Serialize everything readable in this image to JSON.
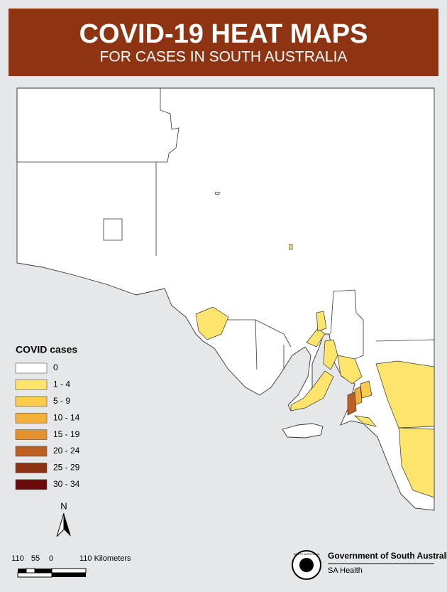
{
  "header": {
    "title": "COVID-19 HEAT MAPS",
    "subtitle": "FOR CASES IN SOUTH AUSTRALIA"
  },
  "legend": {
    "title": "COVID cases",
    "items": [
      {
        "label": "0",
        "color": "#ffffff"
      },
      {
        "label": "1 - 4",
        "color": "#fde46c"
      },
      {
        "label": "5 - 9",
        "color": "#fbcb4c"
      },
      {
        "label": "10 - 14",
        "color": "#f5b03a"
      },
      {
        "label": "15 - 19",
        "color": "#e5912c"
      },
      {
        "label": "20 - 24",
        "color": "#bc5f20"
      },
      {
        "label": "25 - 29",
        "color": "#8c3313"
      },
      {
        "label": "30 - 34",
        "color": "#6b0a0a"
      }
    ]
  },
  "north_arrow": "N",
  "scale_bar": {
    "labels": [
      "110",
      "55",
      "0",
      "110 Kilometers"
    ]
  },
  "logo": {
    "emblem": "SOUTH AUSTRALIA",
    "organization": "Government of South Australia",
    "department": "SA Health"
  }
}
